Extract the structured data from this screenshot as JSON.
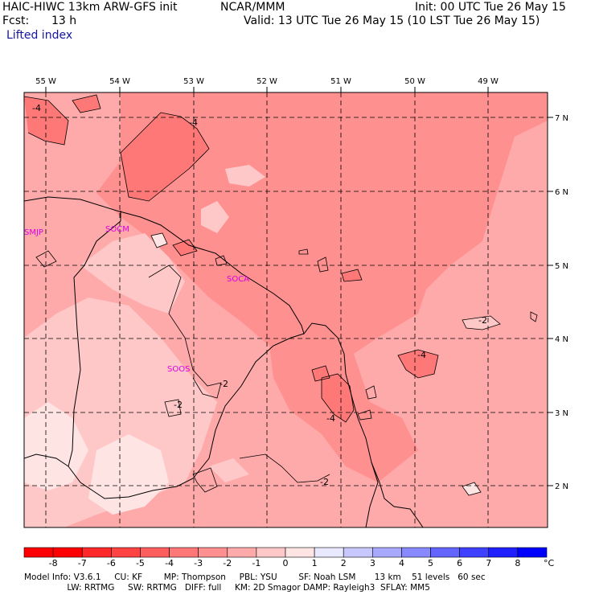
{
  "header": {
    "model": "HAIC-HIWC 13km ARW-GFS init",
    "org": "NCAR/MMM",
    "init": "Init: 00 UTC Tue 26 May 15",
    "fcst_label": "Fcst:",
    "fcst_value": "13 h",
    "valid": "Valid: 13 UTC Tue 26 May 15 (10 LST Tue 26 May 15)",
    "field": "Lifted index"
  },
  "map": {
    "lon_labels": [
      "55 W",
      "54 W",
      "53 W",
      "52 W",
      "51 W",
      "50 W",
      "49 W"
    ],
    "lat_labels": [
      "7 N",
      "6 N",
      "5 N",
      "4 N",
      "3 N",
      "2 N"
    ],
    "stations": [
      "SMJP",
      "SOCM",
      "SOCA",
      "SOOS"
    ],
    "contour_labels": [
      "-4",
      "-4",
      "-2",
      "-2",
      "-4",
      "-2",
      "-4",
      "-2"
    ]
  },
  "colorbar": {
    "ticks": [
      "-8",
      "-7",
      "-6",
      "-5",
      "-4",
      "-3",
      "-2",
      "-1",
      "0",
      "1",
      "2",
      "3",
      "4",
      "5",
      "6",
      "7",
      "8"
    ],
    "unit": "°C",
    "colors": [
      "#ff0000",
      "#ff2828",
      "#ff4242",
      "#ff5e5e",
      "#ff7878",
      "#ff9090",
      "#ffaaaa",
      "#ffc8c8",
      "#ffe4e4",
      "#e8e8ff",
      "#c8c8ff",
      "#a8a8ff",
      "#8888ff",
      "#6464ff",
      "#4040ff",
      "#2020ff",
      "#0000ff"
    ]
  },
  "model_info": {
    "line1": "Model Info: V3.6.1     CU: KF        MP: Thompson     PBL: YSU        SF: Noah LSM       13 km    51 levels   60 sec",
    "line2": "                LW: RRTMG     SW: RRTMG   DIFF: full     KM: 2D Smagor DAMP: Rayleigh3  SFLAY: MM5"
  }
}
